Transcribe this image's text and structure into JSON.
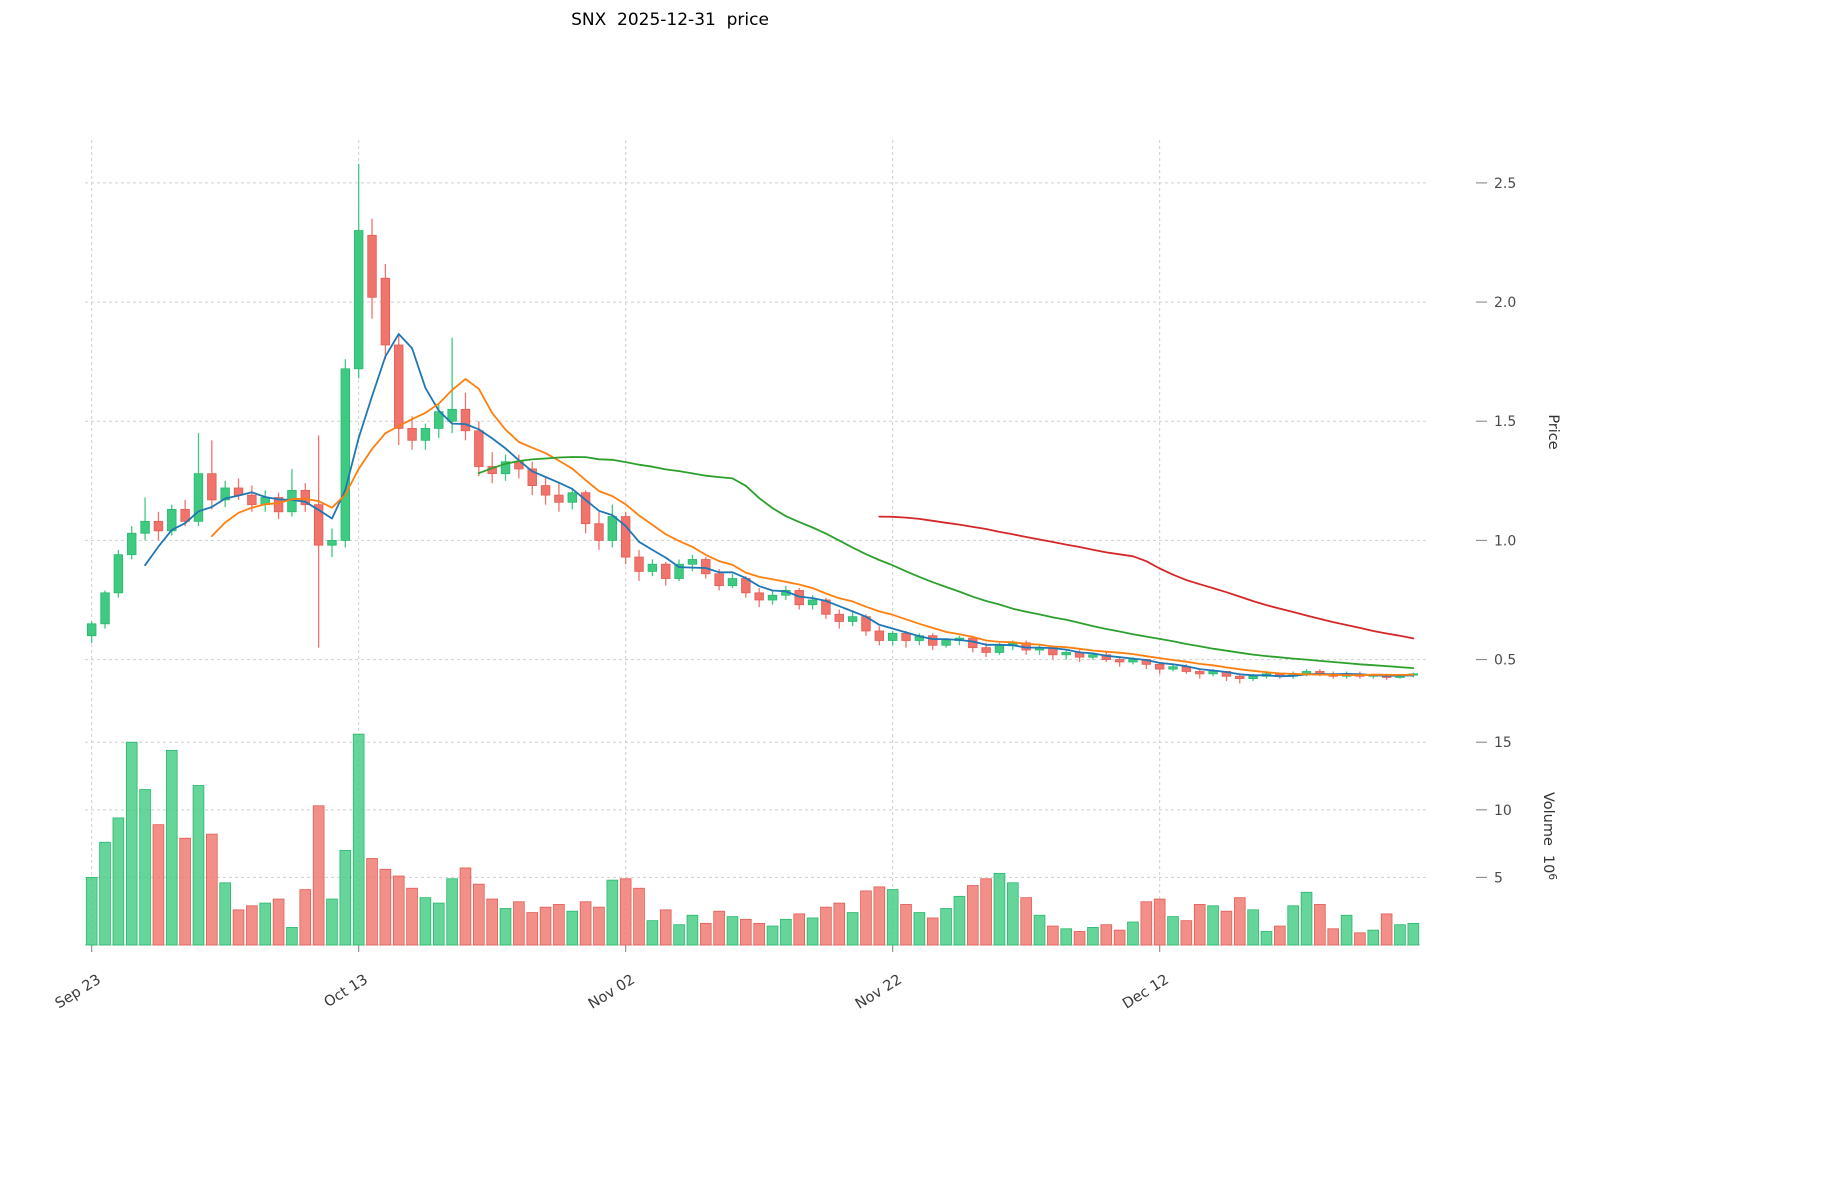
{
  "page": {
    "title": "SNX  2025-12-31  price"
  },
  "chart_data": {
    "type": "candlestick",
    "title": "SNX  2025-12-31  price",
    "grid": true,
    "legend": "none",
    "panels": [
      "price",
      "volume"
    ],
    "x_ticks": [
      {
        "index": 0,
        "label": "Sep 23"
      },
      {
        "index": 20,
        "label": "Oct 13"
      },
      {
        "index": 40,
        "label": "Nov 02"
      },
      {
        "index": 60,
        "label": "Nov 22"
      },
      {
        "index": 80,
        "label": "Dec 12"
      }
    ],
    "price_axis": {
      "label": "Price",
      "side": "right",
      "range": [
        0.28,
        2.68
      ],
      "ticks": [
        {
          "v": 0.5,
          "label": "0.5"
        },
        {
          "v": 1.0,
          "label": "1.0"
        },
        {
          "v": 1.5,
          "label": "1.5"
        },
        {
          "v": 2.0,
          "label": "2.0"
        },
        {
          "v": 2.5,
          "label": "2.5"
        }
      ]
    },
    "volume_axis": {
      "label": "Volume",
      "unit_base": "10",
      "unit_exp": "6",
      "side": "right",
      "range": [
        0,
        16.2
      ],
      "ticks": [
        {
          "v": 5,
          "label": "5"
        },
        {
          "v": 10,
          "label": "10"
        },
        {
          "v": 15,
          "label": "15"
        }
      ]
    },
    "moving_averages": [
      {
        "window": 5,
        "color": "#1f77b4"
      },
      {
        "window": 10,
        "color": "#ff7f0e"
      },
      {
        "window": 30,
        "color": "#2ca02c"
      },
      {
        "window": 60,
        "color": "#d62728"
      }
    ],
    "colors": {
      "up": "#3ecb81",
      "up_edge": "#26b96c",
      "down": "#f0736c",
      "down_edge": "#e25d55",
      "grid": "#cfcfcf",
      "tick_label": "#4a4a4a"
    },
    "candles": [
      {
        "d": "2025-09-23",
        "o": 0.6,
        "h": 0.66,
        "l": 0.57,
        "c": 0.65,
        "v": 5.0
      },
      {
        "d": "2025-09-24",
        "o": 0.65,
        "h": 0.79,
        "l": 0.63,
        "c": 0.78,
        "v": 7.6
      },
      {
        "d": "2025-09-25",
        "o": 0.78,
        "h": 0.96,
        "l": 0.76,
        "c": 0.94,
        "v": 9.4
      },
      {
        "d": "2025-09-26",
        "o": 0.94,
        "h": 1.06,
        "l": 0.92,
        "c": 1.03,
        "v": 15.0
      },
      {
        "d": "2025-09-27",
        "o": 1.03,
        "h": 1.18,
        "l": 1.0,
        "c": 1.08,
        "v": 11.5
      },
      {
        "d": "2025-09-28",
        "o": 1.08,
        "h": 1.12,
        "l": 1.0,
        "c": 1.04,
        "v": 8.9
      },
      {
        "d": "2025-09-29",
        "o": 1.04,
        "h": 1.15,
        "l": 1.02,
        "c": 1.13,
        "v": 14.4
      },
      {
        "d": "2025-09-30",
        "o": 1.13,
        "h": 1.17,
        "l": 1.06,
        "c": 1.08,
        "v": 7.9
      },
      {
        "d": "2025-10-01",
        "o": 1.08,
        "h": 1.45,
        "l": 1.06,
        "c": 1.28,
        "v": 11.8
      },
      {
        "d": "2025-10-02",
        "o": 1.28,
        "h": 1.42,
        "l": 1.13,
        "c": 1.17,
        "v": 8.2
      },
      {
        "d": "2025-10-03",
        "o": 1.17,
        "h": 1.25,
        "l": 1.14,
        "c": 1.22,
        "v": 4.6
      },
      {
        "d": "2025-10-04",
        "o": 1.22,
        "h": 1.26,
        "l": 1.17,
        "c": 1.19,
        "v": 2.6
      },
      {
        "d": "2025-10-05",
        "o": 1.19,
        "h": 1.23,
        "l": 1.12,
        "c": 1.15,
        "v": 2.9
      },
      {
        "d": "2025-10-06",
        "o": 1.15,
        "h": 1.21,
        "l": 1.12,
        "c": 1.18,
        "v": 3.1
      },
      {
        "d": "2025-10-07",
        "o": 1.18,
        "h": 1.2,
        "l": 1.09,
        "c": 1.12,
        "v": 3.4
      },
      {
        "d": "2025-10-08",
        "o": 1.12,
        "h": 1.3,
        "l": 1.1,
        "c": 1.21,
        "v": 1.3
      },
      {
        "d": "2025-10-09",
        "o": 1.21,
        "h": 1.24,
        "l": 1.12,
        "c": 1.15,
        "v": 4.1
      },
      {
        "d": "2025-10-10",
        "o": 1.15,
        "h": 1.44,
        "l": 0.55,
        "c": 0.98,
        "v": 10.3
      },
      {
        "d": "2025-10-11",
        "o": 0.98,
        "h": 1.05,
        "l": 0.93,
        "c": 1.0,
        "v": 3.4
      },
      {
        "d": "2025-10-12",
        "o": 1.0,
        "h": 1.76,
        "l": 0.97,
        "c": 1.72,
        "v": 7.0
      },
      {
        "d": "2025-10-13",
        "o": 1.72,
        "h": 2.58,
        "l": 1.68,
        "c": 2.3,
        "v": 15.6
      },
      {
        "d": "2025-10-14",
        "o": 2.28,
        "h": 2.35,
        "l": 1.93,
        "c": 2.02,
        "v": 6.4
      },
      {
        "d": "2025-10-15",
        "o": 2.1,
        "h": 2.16,
        "l": 1.76,
        "c": 1.82,
        "v": 5.6
      },
      {
        "d": "2025-10-16",
        "o": 1.82,
        "h": 1.86,
        "l": 1.4,
        "c": 1.47,
        "v": 5.1
      },
      {
        "d": "2025-10-17",
        "o": 1.47,
        "h": 1.52,
        "l": 1.38,
        "c": 1.42,
        "v": 4.2
      },
      {
        "d": "2025-10-18",
        "o": 1.42,
        "h": 1.49,
        "l": 1.38,
        "c": 1.47,
        "v": 3.5
      },
      {
        "d": "2025-10-19",
        "o": 1.47,
        "h": 1.57,
        "l": 1.43,
        "c": 1.54,
        "v": 3.1
      },
      {
        "d": "2025-10-20",
        "o": 1.5,
        "h": 1.85,
        "l": 1.45,
        "c": 1.55,
        "v": 4.9
      },
      {
        "d": "2025-10-21",
        "o": 1.55,
        "h": 1.62,
        "l": 1.42,
        "c": 1.46,
        "v": 5.7
      },
      {
        "d": "2025-10-22",
        "o": 1.46,
        "h": 1.5,
        "l": 1.27,
        "c": 1.31,
        "v": 4.5
      },
      {
        "d": "2025-10-23",
        "o": 1.31,
        "h": 1.37,
        "l": 1.24,
        "c": 1.28,
        "v": 3.4
      },
      {
        "d": "2025-10-24",
        "o": 1.28,
        "h": 1.36,
        "l": 1.25,
        "c": 1.33,
        "v": 2.7
      },
      {
        "d": "2025-10-25",
        "o": 1.33,
        "h": 1.36,
        "l": 1.26,
        "c": 1.3,
        "v": 3.2
      },
      {
        "d": "2025-10-26",
        "o": 1.3,
        "h": 1.33,
        "l": 1.19,
        "c": 1.23,
        "v": 2.4
      },
      {
        "d": "2025-10-27",
        "o": 1.23,
        "h": 1.27,
        "l": 1.15,
        "c": 1.19,
        "v": 2.8
      },
      {
        "d": "2025-10-28",
        "o": 1.19,
        "h": 1.24,
        "l": 1.12,
        "c": 1.16,
        "v": 3.0
      },
      {
        "d": "2025-10-29",
        "o": 1.16,
        "h": 1.22,
        "l": 1.13,
        "c": 1.2,
        "v": 2.5
      },
      {
        "d": "2025-10-30",
        "o": 1.2,
        "h": 1.21,
        "l": 1.03,
        "c": 1.07,
        "v": 3.2
      },
      {
        "d": "2025-10-31",
        "o": 1.07,
        "h": 1.12,
        "l": 0.96,
        "c": 1.0,
        "v": 2.8
      },
      {
        "d": "2025-11-01",
        "o": 1.0,
        "h": 1.15,
        "l": 0.97,
        "c": 1.1,
        "v": 4.8
      },
      {
        "d": "2025-11-02",
        "o": 1.1,
        "h": 1.12,
        "l": 0.9,
        "c": 0.93,
        "v": 4.9
      },
      {
        "d": "2025-11-03",
        "o": 0.93,
        "h": 0.96,
        "l": 0.83,
        "c": 0.87,
        "v": 4.2
      },
      {
        "d": "2025-11-04",
        "o": 0.87,
        "h": 0.92,
        "l": 0.85,
        "c": 0.9,
        "v": 1.8
      },
      {
        "d": "2025-11-05",
        "o": 0.9,
        "h": 0.91,
        "l": 0.81,
        "c": 0.84,
        "v": 2.6
      },
      {
        "d": "2025-11-06",
        "o": 0.84,
        "h": 0.92,
        "l": 0.83,
        "c": 0.9,
        "v": 1.5
      },
      {
        "d": "2025-11-07",
        "o": 0.9,
        "h": 0.94,
        "l": 0.87,
        "c": 0.92,
        "v": 2.2
      },
      {
        "d": "2025-11-08",
        "o": 0.92,
        "h": 0.93,
        "l": 0.84,
        "c": 0.86,
        "v": 1.6
      },
      {
        "d": "2025-11-09",
        "o": 0.86,
        "h": 0.88,
        "l": 0.79,
        "c": 0.81,
        "v": 2.5
      },
      {
        "d": "2025-11-10",
        "o": 0.81,
        "h": 0.86,
        "l": 0.8,
        "c": 0.84,
        "v": 2.1
      },
      {
        "d": "2025-11-11",
        "o": 0.84,
        "h": 0.85,
        "l": 0.76,
        "c": 0.78,
        "v": 1.9
      },
      {
        "d": "2025-11-12",
        "o": 0.78,
        "h": 0.8,
        "l": 0.72,
        "c": 0.75,
        "v": 1.6
      },
      {
        "d": "2025-11-13",
        "o": 0.75,
        "h": 0.79,
        "l": 0.73,
        "c": 0.77,
        "v": 1.4
      },
      {
        "d": "2025-11-14",
        "o": 0.77,
        "h": 0.81,
        "l": 0.75,
        "c": 0.79,
        "v": 1.9
      },
      {
        "d": "2025-11-15",
        "o": 0.79,
        "h": 0.8,
        "l": 0.71,
        "c": 0.73,
        "v": 2.3
      },
      {
        "d": "2025-11-16",
        "o": 0.73,
        "h": 0.77,
        "l": 0.71,
        "c": 0.75,
        "v": 2.0
      },
      {
        "d": "2025-11-17",
        "o": 0.75,
        "h": 0.76,
        "l": 0.67,
        "c": 0.69,
        "v": 2.8
      },
      {
        "d": "2025-11-18",
        "o": 0.69,
        "h": 0.71,
        "l": 0.63,
        "c": 0.66,
        "v": 3.1
      },
      {
        "d": "2025-11-19",
        "o": 0.66,
        "h": 0.7,
        "l": 0.64,
        "c": 0.68,
        "v": 2.4
      },
      {
        "d": "2025-11-20",
        "o": 0.68,
        "h": 0.69,
        "l": 0.6,
        "c": 0.62,
        "v": 4.0
      },
      {
        "d": "2025-11-21",
        "o": 0.62,
        "h": 0.64,
        "l": 0.56,
        "c": 0.58,
        "v": 4.3
      },
      {
        "d": "2025-11-22",
        "o": 0.58,
        "h": 0.62,
        "l": 0.56,
        "c": 0.61,
        "v": 4.1
      },
      {
        "d": "2025-11-23",
        "o": 0.61,
        "h": 0.62,
        "l": 0.55,
        "c": 0.58,
        "v": 3.0
      },
      {
        "d": "2025-11-24",
        "o": 0.58,
        "h": 0.61,
        "l": 0.56,
        "c": 0.6,
        "v": 2.4
      },
      {
        "d": "2025-11-25",
        "o": 0.6,
        "h": 0.61,
        "l": 0.54,
        "c": 0.56,
        "v": 2.0
      },
      {
        "d": "2025-11-26",
        "o": 0.56,
        "h": 0.59,
        "l": 0.55,
        "c": 0.58,
        "v": 2.7
      },
      {
        "d": "2025-11-27",
        "o": 0.58,
        "h": 0.6,
        "l": 0.56,
        "c": 0.59,
        "v": 3.6
      },
      {
        "d": "2025-11-28",
        "o": 0.59,
        "h": 0.6,
        "l": 0.53,
        "c": 0.55,
        "v": 4.4
      },
      {
        "d": "2025-11-29",
        "o": 0.55,
        "h": 0.57,
        "l": 0.51,
        "c": 0.53,
        "v": 4.9
      },
      {
        "d": "2025-11-30",
        "o": 0.53,
        "h": 0.57,
        "l": 0.52,
        "c": 0.56,
        "v": 5.3
      },
      {
        "d": "2025-12-01",
        "o": 0.56,
        "h": 0.58,
        "l": 0.54,
        "c": 0.57,
        "v": 4.6
      },
      {
        "d": "2025-12-02",
        "o": 0.57,
        "h": 0.58,
        "l": 0.52,
        "c": 0.54,
        "v": 3.5
      },
      {
        "d": "2025-12-03",
        "o": 0.54,
        "h": 0.56,
        "l": 0.52,
        "c": 0.55,
        "v": 2.2
      },
      {
        "d": "2025-12-04",
        "o": 0.55,
        "h": 0.56,
        "l": 0.5,
        "c": 0.52,
        "v": 1.4
      },
      {
        "d": "2025-12-05",
        "o": 0.52,
        "h": 0.54,
        "l": 0.5,
        "c": 0.53,
        "v": 1.2
      },
      {
        "d": "2025-12-06",
        "o": 0.53,
        "h": 0.54,
        "l": 0.49,
        "c": 0.51,
        "v": 1.0
      },
      {
        "d": "2025-12-07",
        "o": 0.51,
        "h": 0.53,
        "l": 0.5,
        "c": 0.52,
        "v": 1.3
      },
      {
        "d": "2025-12-08",
        "o": 0.52,
        "h": 0.53,
        "l": 0.49,
        "c": 0.5,
        "v": 1.5
      },
      {
        "d": "2025-12-09",
        "o": 0.5,
        "h": 0.51,
        "l": 0.47,
        "c": 0.49,
        "v": 1.1
      },
      {
        "d": "2025-12-10",
        "o": 0.49,
        "h": 0.51,
        "l": 0.48,
        "c": 0.5,
        "v": 1.7
      },
      {
        "d": "2025-12-11",
        "o": 0.5,
        "h": 0.5,
        "l": 0.46,
        "c": 0.48,
        "v": 3.2
      },
      {
        "d": "2025-12-12",
        "o": 0.48,
        "h": 0.49,
        "l": 0.44,
        "c": 0.46,
        "v": 3.4
      },
      {
        "d": "2025-12-13",
        "o": 0.46,
        "h": 0.48,
        "l": 0.45,
        "c": 0.47,
        "v": 2.1
      },
      {
        "d": "2025-12-14",
        "o": 0.47,
        "h": 0.48,
        "l": 0.44,
        "c": 0.45,
        "v": 1.8
      },
      {
        "d": "2025-12-15",
        "o": 0.45,
        "h": 0.46,
        "l": 0.42,
        "c": 0.44,
        "v": 3.0
      },
      {
        "d": "2025-12-16",
        "o": 0.44,
        "h": 0.46,
        "l": 0.43,
        "c": 0.45,
        "v": 2.9
      },
      {
        "d": "2025-12-17",
        "o": 0.45,
        "h": 0.45,
        "l": 0.41,
        "c": 0.43,
        "v": 2.5
      },
      {
        "d": "2025-12-18",
        "o": 0.43,
        "h": 0.44,
        "l": 0.4,
        "c": 0.42,
        "v": 3.5
      },
      {
        "d": "2025-12-19",
        "o": 0.42,
        "h": 0.44,
        "l": 0.41,
        "c": 0.43,
        "v": 2.6
      },
      {
        "d": "2025-12-20",
        "o": 0.43,
        "h": 0.45,
        "l": 0.42,
        "c": 0.44,
        "v": 1.0
      },
      {
        "d": "2025-12-21",
        "o": 0.44,
        "h": 0.44,
        "l": 0.42,
        "c": 0.43,
        "v": 1.4
      },
      {
        "d": "2025-12-22",
        "o": 0.43,
        "h": 0.45,
        "l": 0.42,
        "c": 0.44,
        "v": 2.9
      },
      {
        "d": "2025-12-23",
        "o": 0.44,
        "h": 0.46,
        "l": 0.43,
        "c": 0.45,
        "v": 3.9
      },
      {
        "d": "2025-12-24",
        "o": 0.45,
        "h": 0.46,
        "l": 0.43,
        "c": 0.44,
        "v": 3.0
      },
      {
        "d": "2025-12-25",
        "o": 0.44,
        "h": 0.45,
        "l": 0.42,
        "c": 0.43,
        "v": 1.2
      },
      {
        "d": "2025-12-26",
        "o": 0.43,
        "h": 0.45,
        "l": 0.42,
        "c": 0.44,
        "v": 2.2
      },
      {
        "d": "2025-12-27",
        "o": 0.44,
        "h": 0.45,
        "l": 0.42,
        "c": 0.43,
        "v": 0.9
      },
      {
        "d": "2025-12-28",
        "o": 0.43,
        "h": 0.44,
        "l": 0.42,
        "c": 0.435,
        "v": 1.1
      },
      {
        "d": "2025-12-29",
        "o": 0.435,
        "h": 0.44,
        "l": 0.415,
        "c": 0.425,
        "v": 2.3
      },
      {
        "d": "2025-12-30",
        "o": 0.425,
        "h": 0.44,
        "l": 0.42,
        "c": 0.435,
        "v": 1.5
      },
      {
        "d": "2025-12-31",
        "o": 0.435,
        "h": 0.445,
        "l": 0.425,
        "c": 0.44,
        "v": 1.6
      }
    ]
  }
}
